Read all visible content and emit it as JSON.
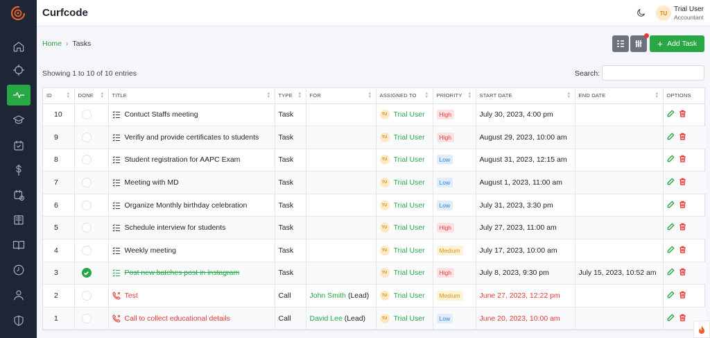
{
  "app": {
    "brand": "Curfcode"
  },
  "user": {
    "initials": "TU",
    "name": "Trial User",
    "role": "Accountant"
  },
  "sidebar": {
    "items": [
      {
        "icon": "home-icon"
      },
      {
        "icon": "crosshair-icon"
      },
      {
        "icon": "activity-icon",
        "active": true
      },
      {
        "icon": "graduation-cap-icon"
      },
      {
        "icon": "calendar-check-icon"
      },
      {
        "icon": "dollar-icon"
      },
      {
        "icon": "calendar-clock-icon"
      },
      {
        "icon": "book-icon"
      },
      {
        "icon": "book-open-icon"
      },
      {
        "icon": "clock-icon"
      },
      {
        "icon": "user-icon"
      },
      {
        "icon": "shield-icon"
      }
    ]
  },
  "breadcrumb": {
    "home": "Home",
    "separator": "›",
    "current": "Tasks"
  },
  "toolbar": {
    "add_task_label": "Add Task"
  },
  "list": {
    "showing": "Showing 1 to 10 of 10 entries",
    "search_label": "Search:",
    "search_value": ""
  },
  "table": {
    "columns": [
      "ID",
      "DONE",
      "TITLE",
      "TYPE",
      "FOR",
      "ASSIGNED TO",
      "PRIORITY",
      "START DATE",
      "END DATE",
      "OPTIONS"
    ],
    "rows": [
      {
        "id": "10",
        "done": false,
        "title": "Contuct Staffs meeting",
        "type": "Task",
        "for": "",
        "assigned": "Trial User",
        "priority": "High",
        "start": "July 30, 2023, 4:00 pm",
        "end": "",
        "kind": "task"
      },
      {
        "id": "9",
        "done": false,
        "title": "Verifiy and provide certificates to students",
        "type": "Task",
        "for": "",
        "assigned": "Trial User",
        "priority": "High",
        "start": "August 29, 2023, 10:00 am",
        "end": "",
        "kind": "task"
      },
      {
        "id": "8",
        "done": false,
        "title": "Student registration for AAPC Exam",
        "type": "Task",
        "for": "",
        "assigned": "Trial User",
        "priority": "Low",
        "start": "August 31, 2023, 12:15 am",
        "end": "",
        "kind": "task"
      },
      {
        "id": "7",
        "done": false,
        "title": "Meeting with MD",
        "type": "Task",
        "for": "",
        "assigned": "Trial User",
        "priority": "Low",
        "start": "August 1, 2023, 11:00 am",
        "end": "",
        "kind": "task"
      },
      {
        "id": "6",
        "done": false,
        "title": "Organize Monthly birthday celebration",
        "type": "Task",
        "for": "",
        "assigned": "Trial User",
        "priority": "Low",
        "start": "July 31, 2023, 3:30 pm",
        "end": "",
        "kind": "task"
      },
      {
        "id": "5",
        "done": false,
        "title": "Schedule interview for students",
        "type": "Task",
        "for": "",
        "assigned": "Trial User",
        "priority": "High",
        "start": "July 27, 2023, 11:00 am",
        "end": "",
        "kind": "task"
      },
      {
        "id": "4",
        "done": false,
        "title": "Weekly meeting",
        "type": "Task",
        "for": "",
        "assigned": "Trial User",
        "priority": "Medium",
        "start": "July 17, 2023, 10:00 am",
        "end": "",
        "kind": "task"
      },
      {
        "id": "3",
        "done": true,
        "title": "Post new batches post in instagram",
        "type": "Task",
        "for": "",
        "assigned": "Trial User",
        "priority": "High",
        "start": "July 8, 2023, 9:30 pm",
        "end": "July 15, 2023, 10:52 am",
        "kind": "task"
      },
      {
        "id": "2",
        "done": false,
        "title": "Test",
        "type": "Call",
        "for": "John Smith",
        "for_suffix": "(Lead)",
        "assigned": "Trial User",
        "priority": "Medium",
        "start": "June 27, 2023, 12:22 pm",
        "end": "",
        "kind": "call"
      },
      {
        "id": "1",
        "done": false,
        "title": "Call to collect educational details",
        "type": "Call",
        "for": "David Lee",
        "for_suffix": "(Lead)",
        "assigned": "Trial User",
        "priority": "Low",
        "start": "June 20, 2023, 10:00 am",
        "end": "",
        "kind": "call"
      }
    ]
  },
  "colors": {
    "accent": "#28a745",
    "danger": "#e53935",
    "sidebar": "#1e2636"
  }
}
